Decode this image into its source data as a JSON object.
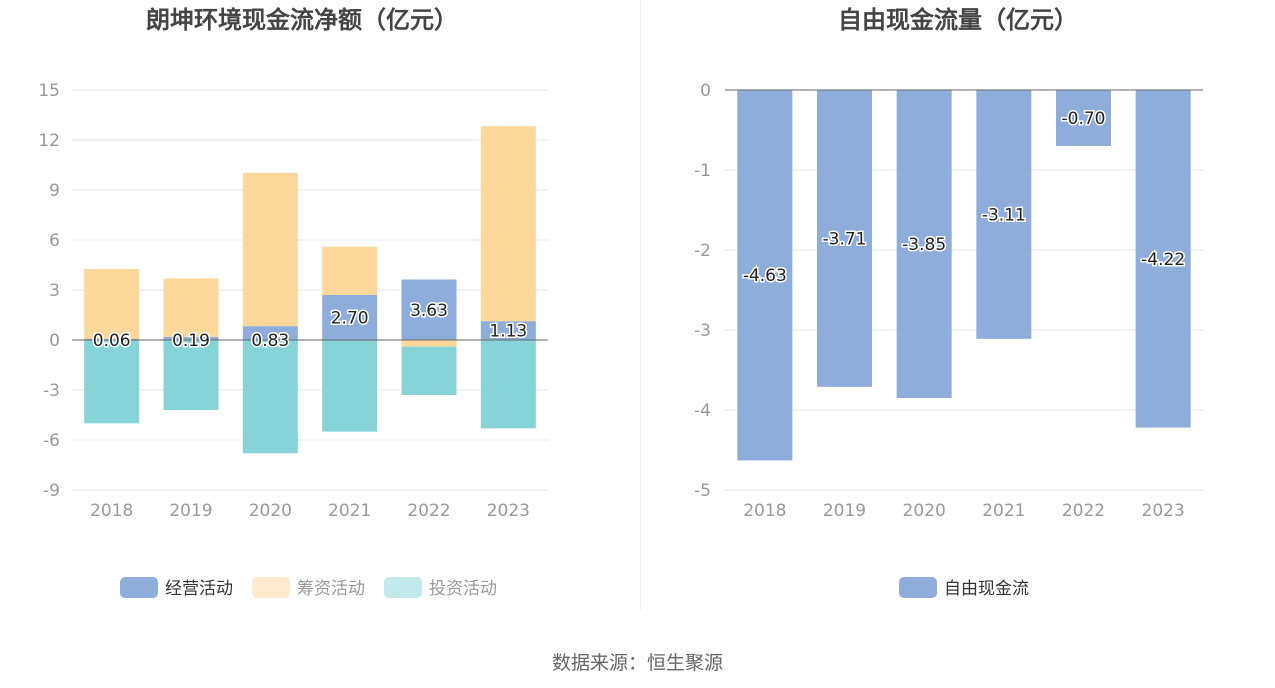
{
  "source": "数据来源：恒生聚源",
  "colors": {
    "operating": "#8eadda",
    "financing": "#fed89b",
    "investing": "#86d4d8",
    "fcf": "#8eadda",
    "grid": "#e3e6f0",
    "axis": "#666666",
    "tick_text": "#999999",
    "title": "#444444"
  },
  "chart_data": [
    {
      "type": "bar",
      "stacked": true,
      "title": "朗坤环境现金流净额（亿元）",
      "categories": [
        "2018",
        "2019",
        "2020",
        "2021",
        "2022",
        "2023"
      ],
      "ylim": [
        -9,
        15
      ],
      "yticks": [
        15,
        12,
        9,
        6,
        3,
        0,
        -3,
        -6,
        -9
      ],
      "grid": true,
      "legend_position": "bottom",
      "series": [
        {
          "name": "经营活动",
          "values": [
            0.06,
            0.19,
            0.83,
            2.7,
            3.63,
            1.13
          ],
          "labels": [
            "0.06",
            "0.19",
            "0.83",
            "2.70",
            "3.63",
            "1.13"
          ]
        },
        {
          "name": "筹资活动",
          "values": [
            4.2,
            3.5,
            9.2,
            2.9,
            -0.4,
            11.7
          ]
        },
        {
          "name": "投资活动",
          "values": [
            -5.0,
            -4.2,
            -6.8,
            -5.5,
            -2.9,
            -5.3
          ]
        }
      ]
    },
    {
      "type": "bar",
      "title": "自由现金流量（亿元）",
      "categories": [
        "2018",
        "2019",
        "2020",
        "2021",
        "2022",
        "2023"
      ],
      "ylim": [
        -5,
        0
      ],
      "yticks": [
        0,
        -1,
        -2,
        -3,
        -4,
        -5
      ],
      "grid": true,
      "legend_position": "bottom",
      "series": [
        {
          "name": "自由现金流",
          "values": [
            -4.63,
            -3.71,
            -3.85,
            -3.11,
            -0.7,
            -4.22
          ],
          "labels": [
            "-4.63",
            "-3.71",
            "-3.85",
            "-3.11",
            "-0.70",
            "-4.22"
          ]
        }
      ]
    }
  ]
}
